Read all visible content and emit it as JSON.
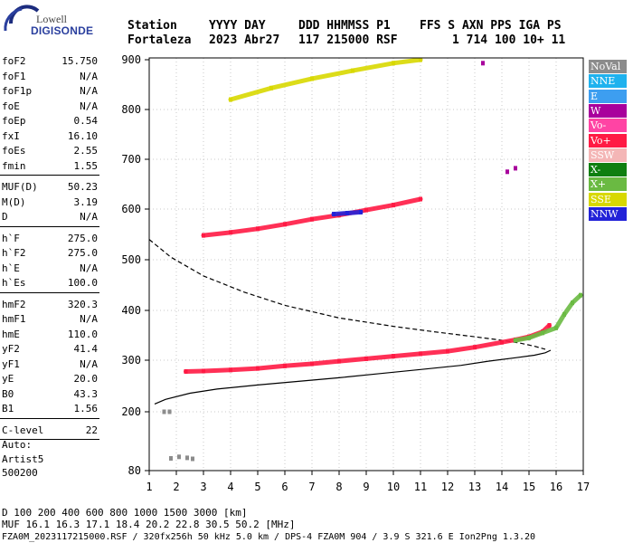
{
  "logo": {
    "line1": "Lowell",
    "line2": "DIGISONDE"
  },
  "header": {
    "row1": [
      "Station",
      "YYYY DAY",
      "DDD HHMMSS P1",
      "FFS S AXN PPS IGA PS"
    ],
    "row2": [
      "Fortaleza",
      "2023 Abr27",
      "117 215000 RSF",
      "1 714 100 10+ 11"
    ]
  },
  "params": [
    {
      "group": [
        {
          "label": "foF2",
          "value": "15.750"
        },
        {
          "label": "foF1",
          "value": "N/A"
        },
        {
          "label": "foF1p",
          "value": "N/A"
        },
        {
          "label": "foE",
          "value": "N/A"
        },
        {
          "label": "foEp",
          "value": "0.54"
        },
        {
          "label": "fxI",
          "value": "16.10"
        },
        {
          "label": "foEs",
          "value": "2.55"
        },
        {
          "label": "fmin",
          "value": "1.55"
        }
      ]
    },
    {
      "group": [
        {
          "label": "MUF(D)",
          "value": "50.23"
        },
        {
          "label": "M(D)",
          "value": "3.19"
        },
        {
          "label": "D",
          "value": "N/A"
        }
      ]
    },
    {
      "group": [
        {
          "label": "h`F",
          "value": "275.0"
        },
        {
          "label": "h`F2",
          "value": "275.0"
        },
        {
          "label": "h`E",
          "value": "N/A"
        },
        {
          "label": "h`Es",
          "value": "100.0"
        }
      ]
    },
    {
      "group": [
        {
          "label": "hmF2",
          "value": "320.3"
        },
        {
          "label": "hmF1",
          "value": "N/A"
        },
        {
          "label": "hmE",
          "value": "110.0"
        },
        {
          "label": "yF2",
          "value": "41.4"
        },
        {
          "label": "yF1",
          "value": "N/A"
        },
        {
          "label": "yE",
          "value": "20.0"
        },
        {
          "label": "B0",
          "value": "43.3"
        },
        {
          "label": "B1",
          "value": "1.56"
        }
      ]
    },
    {
      "group": [
        {
          "label": "C-level",
          "value": "22"
        }
      ]
    }
  ],
  "auto": {
    "line1": "Auto:",
    "line2": "Artist5",
    "line3": "500200"
  },
  "legend": [
    {
      "label": "NoVal",
      "color": "#8c8c8c"
    },
    {
      "label": "NNE",
      "color": "#1fb2ee"
    },
    {
      "label": "E",
      "color": "#3d9ef0"
    },
    {
      "label": "W",
      "color": "#a8009c"
    },
    {
      "label": "Vo-",
      "color": "#ff44a4"
    },
    {
      "label": "Vo+",
      "color": "#ff1a44"
    },
    {
      "label": "SSW",
      "color": "#f4b6b6"
    },
    {
      "label": "X-",
      "color": "#0f7f10"
    },
    {
      "label": "X+",
      "color": "#6aba42"
    },
    {
      "label": "SSE",
      "color": "#d8d800"
    },
    {
      "label": "NNW",
      "color": "#2222d8"
    }
  ],
  "footer": {
    "line1": "D     100  200  400  600  800 1000 1500 3000 [km]",
    "line2": "MUF  16.1 16.3 17.1 18.4 20.2 22.8 30.5 50.2 [MHz]",
    "line3": "FZA0M_2023117215000.RSF / 320fx256h 50 kHz 5.0 km / DPS-4 FZA0M 904 / 3.9 S 321.6 E   Ion2Png 1.3.20"
  },
  "chart_data": {
    "type": "scatter",
    "xlabel": "",
    "ylabel": "",
    "xlim": [
      1,
      17
    ],
    "ylim": [
      80,
      900
    ],
    "x_ticks": [
      1,
      2,
      3,
      4,
      5,
      6,
      7,
      8,
      9,
      10,
      11,
      12,
      13,
      14,
      15,
      16,
      17
    ],
    "y_ticks": [
      80,
      200,
      300,
      400,
      500,
      600,
      700,
      800,
      900
    ],
    "y_scale": "nonlinear (lower heights compressed)",
    "grid": true,
    "traces": [
      {
        "name": "NoVal",
        "layer": "low",
        "points": [
          [
            1.55,
            200
          ],
          [
            1.75,
            200
          ],
          [
            1.8,
            105
          ],
          [
            2.1,
            108
          ],
          [
            2.4,
            106
          ],
          [
            2.6,
            104
          ]
        ]
      },
      {
        "name": "Vo+",
        "layer": "F2 1st hop",
        "points": [
          [
            2.35,
            278
          ],
          [
            3.0,
            279
          ],
          [
            4.0,
            281
          ],
          [
            5.0,
            284
          ],
          [
            6.0,
            289
          ],
          [
            7.0,
            293
          ],
          [
            8.0,
            298
          ],
          [
            9.0,
            303
          ],
          [
            10.0,
            308
          ],
          [
            11.0,
            313
          ],
          [
            12.0,
            318
          ],
          [
            13.0,
            326
          ],
          [
            14.0,
            336
          ],
          [
            14.5,
            341
          ],
          [
            15.0,
            347
          ],
          [
            15.5,
            357
          ],
          [
            15.75,
            370
          ]
        ]
      },
      {
        "name": "X+",
        "layer": "F2 1st hop x-trace",
        "points": [
          [
            14.5,
            340
          ],
          [
            15.0,
            345
          ],
          [
            15.5,
            355
          ],
          [
            16.0,
            365
          ],
          [
            16.3,
            392
          ],
          [
            16.6,
            415
          ],
          [
            16.9,
            430
          ]
        ]
      },
      {
        "name": "Vo+",
        "layer": "F2 2nd hop",
        "points": [
          [
            3.0,
            548
          ],
          [
            4.0,
            554
          ],
          [
            5.0,
            561
          ],
          [
            6.0,
            570
          ],
          [
            7.0,
            580
          ],
          [
            8.0,
            588
          ],
          [
            9.0,
            598
          ],
          [
            10.0,
            608
          ],
          [
            11.0,
            620
          ]
        ]
      },
      {
        "name": "NNW",
        "layer": "F2 2nd hop",
        "points": [
          [
            7.8,
            590
          ],
          [
            8.3,
            592
          ],
          [
            8.8,
            594
          ]
        ]
      },
      {
        "name": "SSE",
        "layer": "F2 3rd hop",
        "points": [
          [
            4.0,
            820
          ],
          [
            5.5,
            843
          ],
          [
            7.0,
            862
          ],
          [
            8.5,
            878
          ],
          [
            10.0,
            893
          ],
          [
            11.0,
            900
          ]
        ]
      },
      {
        "name": "W",
        "layer": "scattered",
        "points": [
          [
            13.3,
            893
          ],
          [
            14.5,
            682
          ],
          [
            14.2,
            675
          ]
        ]
      }
    ],
    "profiles": [
      {
        "name": "true-height profile",
        "style": "solid",
        "points": [
          [
            1.2,
            215
          ],
          [
            1.6,
            224
          ],
          [
            2.5,
            236
          ],
          [
            3.5,
            244
          ],
          [
            5.0,
            252
          ],
          [
            6.5,
            259
          ],
          [
            8.0,
            266
          ],
          [
            9.5,
            274
          ],
          [
            11.0,
            282
          ],
          [
            12.5,
            290
          ],
          [
            13.5,
            298
          ],
          [
            14.5,
            305
          ],
          [
            15.2,
            310
          ],
          [
            15.6,
            315
          ],
          [
            15.8,
            320
          ]
        ]
      },
      {
        "name": "extrapolated profile",
        "style": "dashed",
        "points": [
          [
            1.0,
            540
          ],
          [
            1.8,
            505
          ],
          [
            3.0,
            468
          ],
          [
            4.5,
            436
          ],
          [
            6.0,
            410
          ],
          [
            8.0,
            385
          ],
          [
            10.0,
            368
          ],
          [
            11.5,
            357
          ],
          [
            13.0,
            347
          ],
          [
            14.0,
            340
          ],
          [
            14.7,
            334
          ],
          [
            15.2,
            328
          ],
          [
            15.6,
            322
          ]
        ]
      }
    ]
  }
}
